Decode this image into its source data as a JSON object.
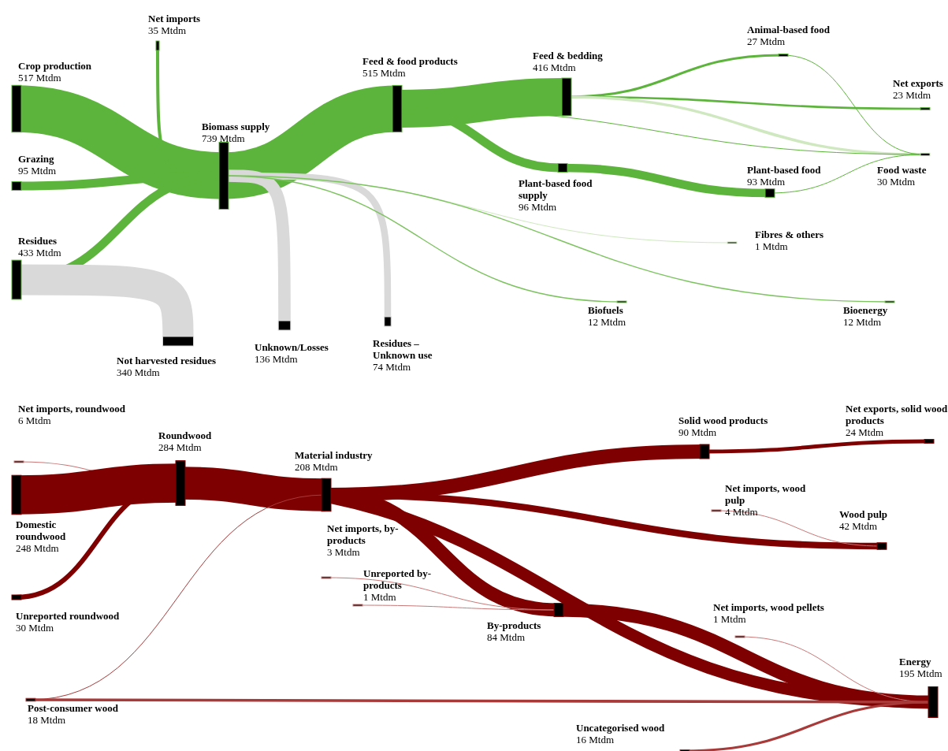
{
  "chart_data": [
    {
      "type": "other",
      "categories": [
        "Crop production",
        "Net imports",
        "Grazing",
        "Residues",
        "Biomass supply",
        "Feed & food products",
        "Feed & bedding",
        "Plant-based food supply",
        "Animal-based food",
        "Net exports",
        "Plant-based food",
        "Food waste",
        "Fibres & others",
        "Biofuels",
        "Bioenergy",
        "Not harvested residues",
        "Unknown/Losses",
        "Residues – Unknown use"
      ],
      "values": [
        517,
        35,
        95,
        433,
        739,
        515,
        416,
        96,
        27,
        23,
        93,
        30,
        1,
        12,
        12,
        340,
        136,
        74
      ],
      "value_labels": [
        "517 Mtdm",
        "35 Mtdm",
        "95 Mtdm",
        "433 Mtdm",
        "739 Mtdm",
        "515 Mtdm",
        "416 Mtdm",
        "96 Mtdm",
        "27 Mtdm",
        "23 Mtdm",
        "93 Mtdm",
        "30 Mtdm",
        "1 Mtdm",
        "12 Mtdm",
        "12 Mtdm",
        "340 Mtdm",
        "136 Mtdm",
        "74 Mtdm"
      ],
      "colors": [
        "#5db43c",
        "#5db43c",
        "#5db43c",
        "#5db43c",
        "#5db43c",
        "#5db43c",
        "#5db43c",
        "#5db43c",
        "#5db43c",
        "#5db43c",
        "#5db43c",
        "#cfe8c0",
        "#cfe8c0",
        "#7cc35f",
        "#7cc35f",
        "#d9d9d9",
        "#d9d9d9",
        "#d9d9d9"
      ]
    },
    {
      "type": "other",
      "categories": [
        "Net imports, roundwood",
        "Domestic roundwood",
        "Unreported roundwood",
        "Roundwood",
        "Material industry",
        "Solid wood products",
        "Net exports, solid wood products",
        "Net imports, wood pulp",
        "Wood pulp",
        "Net imports, by-products",
        "Unreported by-products",
        "By-products",
        "Net imports, wood pellets",
        "Energy",
        "Post-consumer wood",
        "Uncategorised wood"
      ],
      "values": [
        6,
        248,
        30,
        284,
        208,
        90,
        24,
        4,
        42,
        3,
        1,
        84,
        1,
        195,
        18,
        16
      ],
      "value_labels": [
        "6 Mtdm",
        "248 Mtdm",
        "30 Mtdm",
        "284 Mtdm",
        "208 Mtdm",
        "90 Mtdm",
        "24 Mtdm",
        "4 Mtdm",
        "42 Mtdm",
        "3 Mtdm",
        "1 Mtdm",
        "84 Mtdm",
        "1 Mtdm",
        "195 Mtdm",
        "18 Mtdm",
        "16 Mtdm"
      ],
      "colors": [
        "#c87878",
        "#7f0000",
        "#7f0000",
        "#7f0000",
        "#7f0000",
        "#7f0000",
        "#7f0000",
        "#c87878",
        "#7f0000",
        "#c87878",
        "#c87878",
        "#7f0000",
        "#c87878",
        "#7f0000",
        "#a83a3a",
        "#a83a3a"
      ]
    }
  ]
}
